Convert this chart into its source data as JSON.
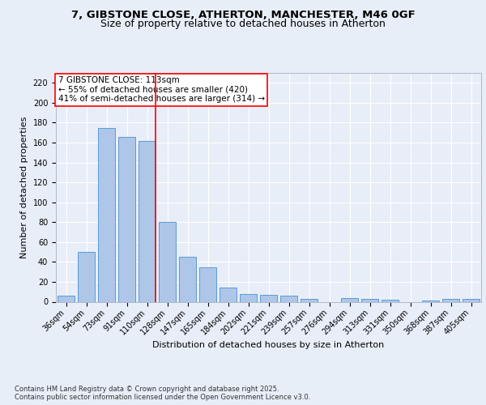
{
  "title_line1": "7, GIBSTONE CLOSE, ATHERTON, MANCHESTER, M46 0GF",
  "title_line2": "Size of property relative to detached houses in Atherton",
  "xlabel": "Distribution of detached houses by size in Atherton",
  "ylabel": "Number of detached properties",
  "categories": [
    "36sqm",
    "54sqm",
    "73sqm",
    "91sqm",
    "110sqm",
    "128sqm",
    "147sqm",
    "165sqm",
    "184sqm",
    "202sqm",
    "221sqm",
    "239sqm",
    "257sqm",
    "276sqm",
    "294sqm",
    "313sqm",
    "331sqm",
    "350sqm",
    "368sqm",
    "387sqm",
    "405sqm"
  ],
  "values": [
    6,
    50,
    175,
    166,
    162,
    80,
    45,
    35,
    14,
    8,
    7,
    6,
    3,
    0,
    4,
    3,
    2,
    0,
    1,
    3,
    3
  ],
  "bar_color": "#aec6e8",
  "bar_edge_color": "#5b9bd5",
  "red_line_index": 4,
  "ylim": [
    0,
    230
  ],
  "yticks": [
    0,
    20,
    40,
    60,
    80,
    100,
    120,
    140,
    160,
    180,
    200,
    220
  ],
  "annotation_title": "7 GIBSTONE CLOSE: 113sqm",
  "annotation_line1": "← 55% of detached houses are smaller (420)",
  "annotation_line2": "41% of semi-detached houses are larger (314) →",
  "footer_line1": "Contains HM Land Registry data © Crown copyright and database right 2025.",
  "footer_line2": "Contains public sector information licensed under the Open Government Licence v3.0.",
  "bg_color": "#e8eef8",
  "plot_bg_color": "#e8eef8",
  "title_fontsize": 9.5,
  "subtitle_fontsize": 9,
  "tick_fontsize": 7,
  "ylabel_fontsize": 8,
  "xlabel_fontsize": 8,
  "annotation_fontsize": 7.5,
  "footer_fontsize": 6
}
